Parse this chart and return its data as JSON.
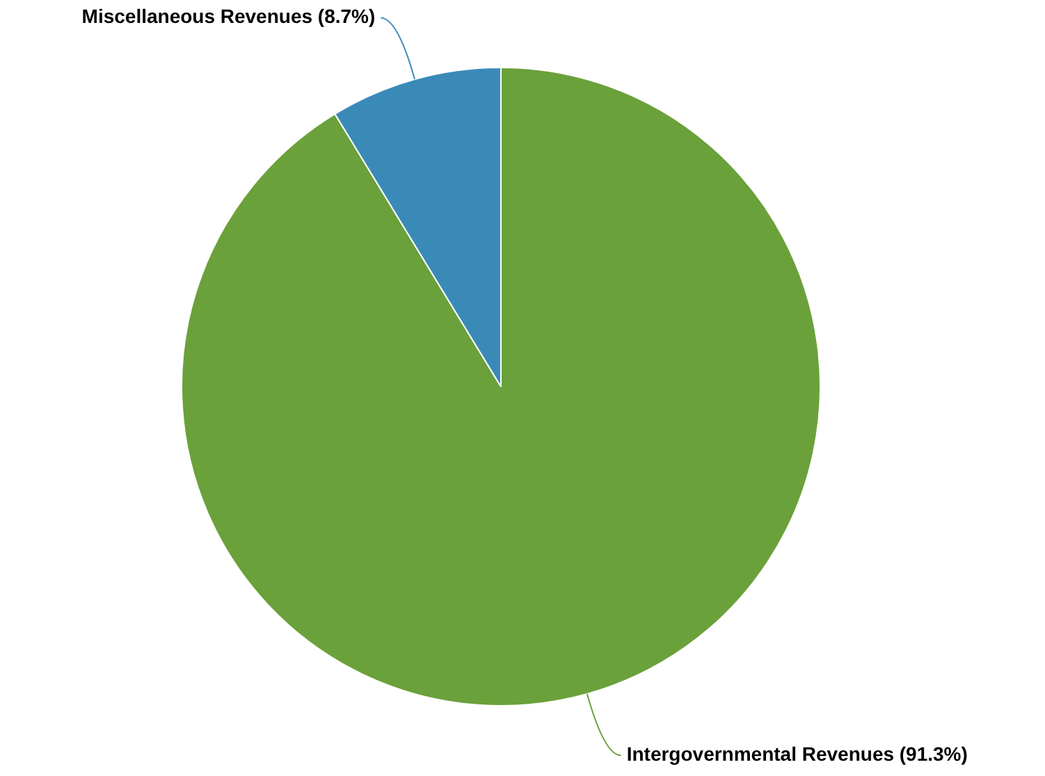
{
  "chart_data": {
    "type": "pie",
    "categories": [
      "Intergovernmental Revenues",
      "Miscellaneous Revenues"
    ],
    "values": [
      91.3,
      8.7
    ],
    "colors": [
      "#6aa13a",
      "#3a8ab8"
    ],
    "value_labels": [
      "(91.3%)",
      "(8.7%)"
    ],
    "legend": false
  }
}
